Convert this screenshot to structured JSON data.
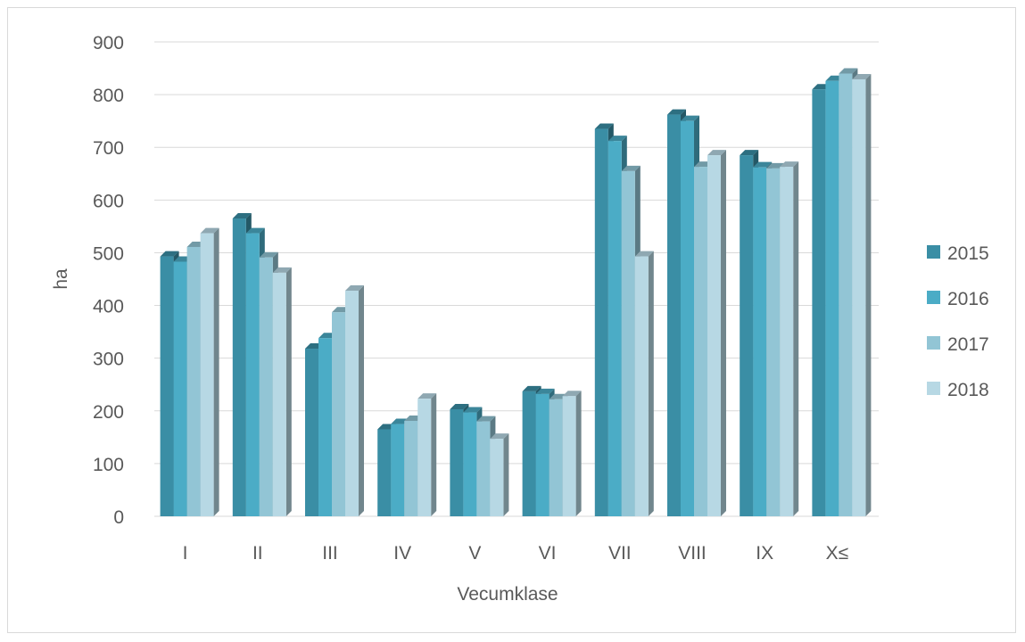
{
  "chart_data": {
    "type": "bar",
    "style": "3d-clustered-column",
    "categories": [
      "I",
      "II",
      "III",
      "IV",
      "V",
      "VI",
      "VII",
      "VIII",
      "IX",
      "X≤"
    ],
    "series": [
      {
        "name": "2015",
        "color": "#3a8ea5",
        "values": [
          493,
          565,
          318,
          165,
          203,
          237,
          735,
          762,
          685,
          810
        ]
      },
      {
        "name": "2016",
        "color": "#4bacc6",
        "values": [
          483,
          537,
          338,
          175,
          197,
          232,
          712,
          750,
          662,
          826
        ]
      },
      {
        "name": "2017",
        "color": "#92c5d5",
        "values": [
          511,
          491,
          387,
          181,
          180,
          222,
          655,
          663,
          660,
          840
        ]
      },
      {
        "name": "2018",
        "color": "#b7d8e4",
        "values": [
          537,
          462,
          428,
          223,
          147,
          228,
          493,
          685,
          663,
          829
        ]
      }
    ],
    "xlabel": "Vecumklase",
    "ylabel": "ha",
    "ylim": [
      0,
      900
    ],
    "yticks": [
      "0",
      "100",
      "200",
      "300",
      "400",
      "500",
      "600",
      "700",
      "800",
      "900"
    ],
    "grid": true,
    "legend": "right"
  }
}
